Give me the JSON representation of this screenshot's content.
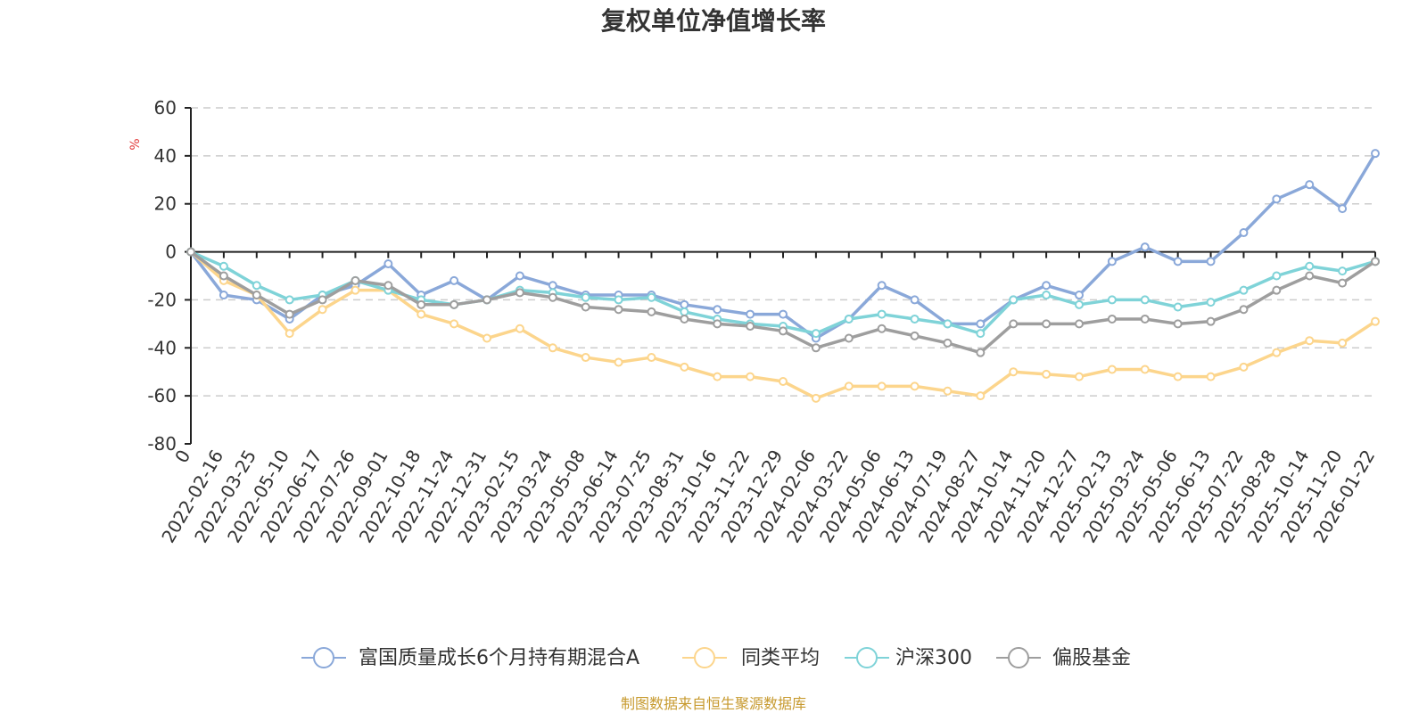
{
  "chart_data": {
    "type": "line",
    "title": "复权单位净值增长率",
    "ylabel": "%",
    "ylim": [
      -80,
      60
    ],
    "yticks": [
      60,
      40,
      20,
      0,
      -20,
      -40,
      -60,
      -80
    ],
    "x": [
      "0",
      "2022-02-16",
      "2022-03-25",
      "2022-05-10",
      "2022-06-17",
      "2022-07-26",
      "2022-09-01",
      "2022-10-18",
      "2022-11-24",
      "2022-12-31",
      "2023-02-15",
      "2023-03-24",
      "2023-05-08",
      "2023-06-14",
      "2023-07-25",
      "2023-08-31",
      "2023-10-16",
      "2023-11-22",
      "2023-12-29",
      "2024-02-06",
      "2024-03-22",
      "2024-05-06",
      "2024-06-13",
      "2024-07-19",
      "2024-08-27",
      "2024-10-14",
      "2024-11-20",
      "2024-12-27",
      "2025-02-13",
      "2025-03-24",
      "2025-05-06",
      "2025-06-13",
      "2025-07-22",
      "2025-08-28",
      "2025-10-14",
      "2025-11-20",
      "2026-01-22"
    ],
    "series": [
      {
        "name": "富国质量成长6个月持有期混合A",
        "color": "#8aa8d9",
        "values": [
          0,
          -18,
          -20,
          -28,
          -18,
          -14,
          -5,
          -18,
          -12,
          -20,
          -10,
          -14,
          -18,
          -18,
          -18,
          -22,
          -24,
          -26,
          -26,
          -36,
          -28,
          -14,
          -20,
          -30,
          -30,
          -20,
          -14,
          -18,
          -4,
          2,
          -4,
          -4,
          8,
          22,
          28,
          18,
          41
        ]
      },
      {
        "name": "同类平均",
        "color": "#fcd58c",
        "values": [
          0,
          -12,
          -18,
          -34,
          -24,
          -16,
          -16,
          -26,
          -30,
          -36,
          -32,
          -40,
          -44,
          -46,
          -44,
          -48,
          -52,
          -52,
          -54,
          -61,
          -56,
          -56,
          -56,
          -58,
          -60,
          -50,
          -51,
          -52,
          -49,
          -49,
          -52,
          -52,
          -48,
          -42,
          -37,
          -38,
          -29
        ]
      },
      {
        "name": "沪深300",
        "color": "#7fd3d8",
        "values": [
          0,
          -6,
          -14,
          -20,
          -18,
          -12,
          -16,
          -20,
          -22,
          -20,
          -16,
          -17,
          -19,
          -20,
          -19,
          -25,
          -28,
          -30,
          -31,
          -34,
          -28,
          -26,
          -28,
          -30,
          -34,
          -20,
          -18,
          -22,
          -20,
          -20,
          -23,
          -21,
          -16,
          -10,
          -6,
          -8,
          -4
        ]
      },
      {
        "name": "偏股基金",
        "color": "#9e9e9e",
        "values": [
          0,
          -10,
          -18,
          -26,
          -20,
          -12,
          -14,
          -22,
          -22,
          -20,
          -17,
          -19,
          -23,
          -24,
          -25,
          -28,
          -30,
          -31,
          -33,
          -40,
          -36,
          -32,
          -35,
          -38,
          -42,
          -30,
          -30,
          -30,
          -28,
          -28,
          -30,
          -29,
          -24,
          -16,
          -10,
          -13,
          -4
        ]
      }
    ],
    "grid": true,
    "legend_position": "bottom-center"
  },
  "source": "制图数据来自恒生聚源数据库"
}
